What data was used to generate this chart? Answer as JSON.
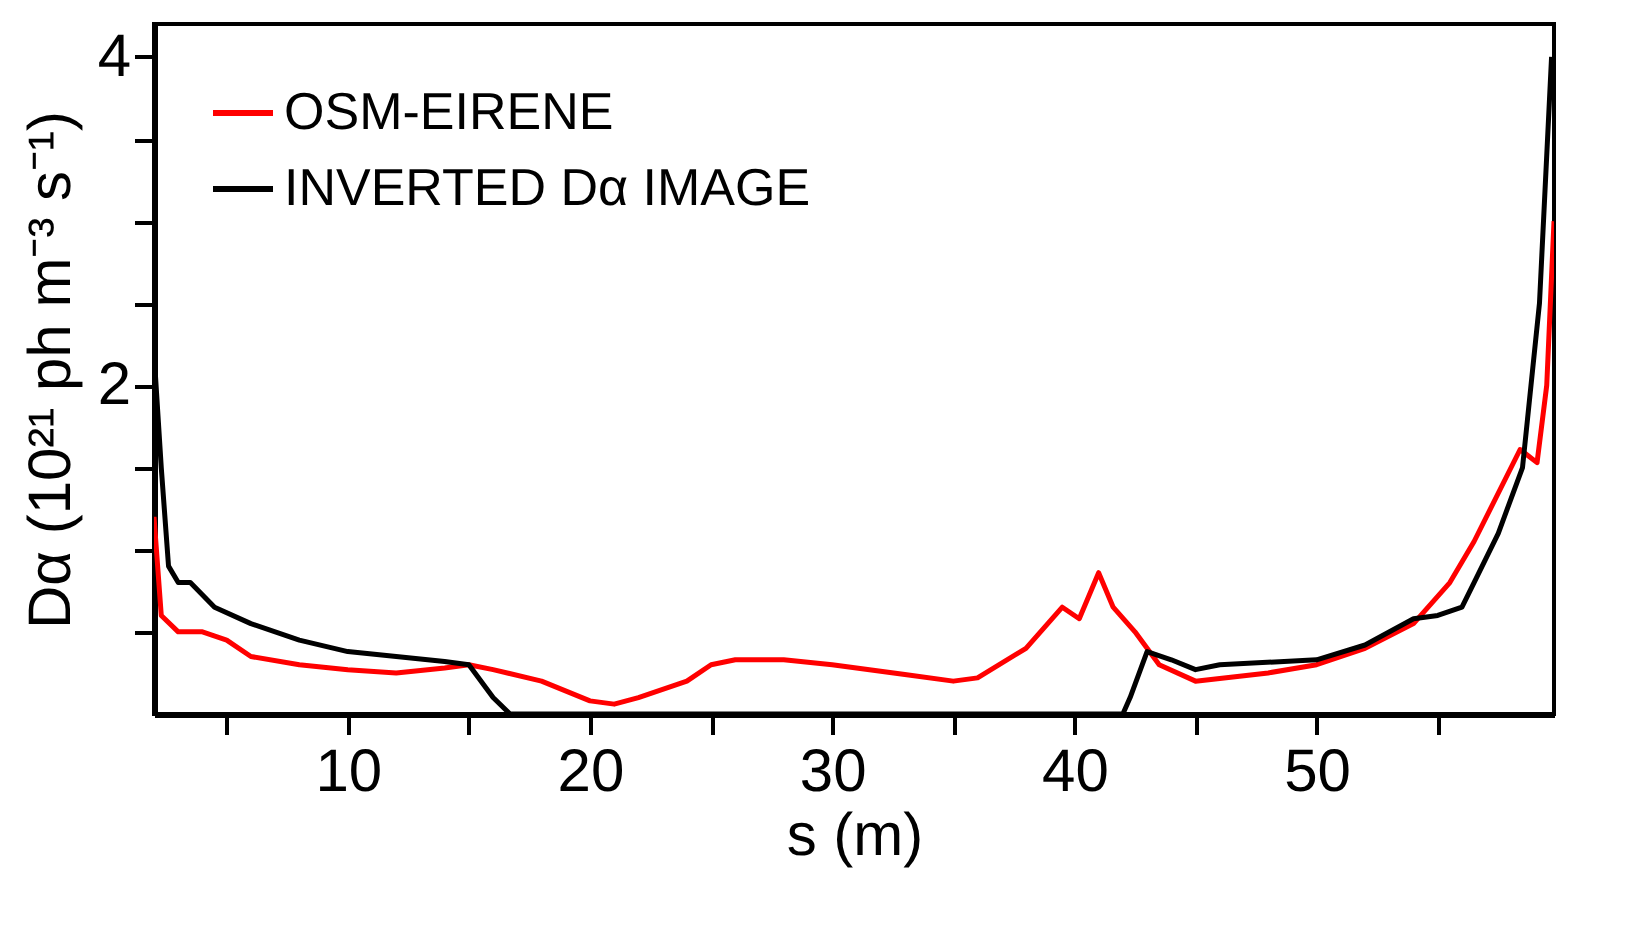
{
  "chart_data": {
    "type": "line",
    "xlabel": "s (m)",
    "ylabel": "Dα (10²¹ ph m⁻³ s⁻¹)",
    "xlim": [
      2,
      59.8
    ],
    "ylim": [
      0,
      4.2
    ],
    "xticks": [
      {
        "value": 5,
        "label": null
      },
      10,
      {
        "value": 15,
        "label": null
      },
      20,
      {
        "value": 25,
        "label": null
      },
      30,
      {
        "value": 35,
        "label": null
      },
      40,
      {
        "value": 45,
        "label": null
      },
      50,
      {
        "value": 55,
        "label": null
      }
    ],
    "yticks": [
      {
        "value": 0.5,
        "label": null
      },
      {
        "value": 1,
        "label": null
      },
      {
        "value": 1.5,
        "label": null
      },
      2,
      {
        "value": 2.5,
        "label": null
      },
      {
        "value": 3,
        "label": null
      },
      {
        "value": 3.5,
        "label": null
      },
      4
    ],
    "grid": false,
    "legend": "top left",
    "line_style": "solid",
    "marker": "none",
    "series": [
      {
        "name": "OSM-EIRENE",
        "color": "#ff0000",
        "x": [
          2.0,
          2.3,
          3,
          4,
          5,
          6,
          8,
          10,
          12,
          14,
          15,
          16,
          18,
          20,
          21,
          22,
          24,
          25,
          26,
          28,
          30,
          33,
          35,
          36,
          38,
          39.5,
          40.2,
          41,
          41.6,
          42.5,
          43.5,
          45,
          48,
          50,
          52,
          54,
          55.5,
          56.5,
          58.4,
          59.1,
          59.5,
          59.8
        ],
        "values": [
          1.2,
          0.6,
          0.5,
          0.5,
          0.45,
          0.35,
          0.3,
          0.27,
          0.25,
          0.28,
          0.3,
          0.27,
          0.2,
          0.08,
          0.06,
          0.1,
          0.2,
          0.3,
          0.33,
          0.33,
          0.3,
          0.24,
          0.2,
          0.22,
          0.4,
          0.65,
          0.58,
          0.86,
          0.65,
          0.5,
          0.3,
          0.2,
          0.25,
          0.3,
          0.4,
          0.55,
          0.8,
          1.05,
          1.61,
          1.53,
          2.0,
          3.0
        ]
      },
      {
        "name": "INVERTED Dα IMAGE",
        "color": "#000000",
        "x": [
          2,
          2.3,
          2.6,
          3,
          3.5,
          4.5,
          6,
          8,
          10,
          12,
          14,
          15,
          16,
          16.7,
          42,
          42.3,
          43,
          44,
          45,
          46,
          50,
          52,
          54,
          55,
          56,
          56.5,
          57.5,
          58.5,
          59.2,
          59.7
        ],
        "values": [
          2.2,
          1.5,
          0.9,
          0.8,
          0.8,
          0.65,
          0.55,
          0.45,
          0.38,
          0.35,
          0.32,
          0.3,
          0.1,
          0,
          0,
          0.1,
          0.38,
          0.33,
          0.27,
          0.3,
          0.33,
          0.42,
          0.58,
          0.6,
          0.65,
          0.8,
          1.1,
          1.5,
          2.5,
          4.0
        ]
      }
    ]
  }
}
